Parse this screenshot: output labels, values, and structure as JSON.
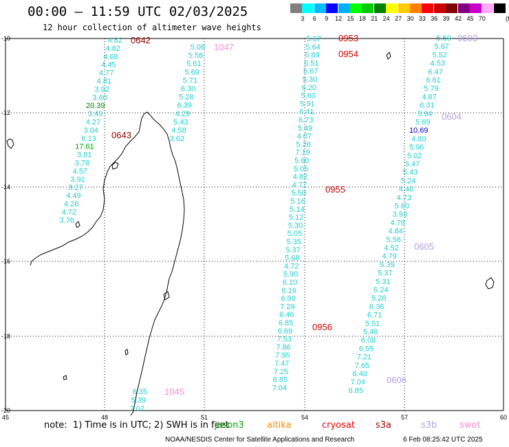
{
  "header": {
    "title": "00:00 – 11:59 UTC 02/03/2025",
    "subtitle": "12 hour collection of altimeter wave heights"
  },
  "scale": {
    "unit": "(ft)",
    "ticks": [
      "3",
      "6",
      "9",
      "12",
      "15",
      "18",
      "21",
      "24",
      "27",
      "30",
      "33",
      "36",
      "39",
      "42",
      "45",
      "70"
    ],
    "colors": [
      "#808080",
      "#00ffff",
      "#00bfff",
      "#0000ff",
      "#00b0ff",
      "#00ff00",
      "#00cc00",
      "#008000",
      "#ffff00",
      "#ffcc00",
      "#ff8000",
      "#ff0000",
      "#cc0000",
      "#800000",
      "#800080",
      "#cc00cc",
      "#ffaaff",
      "#000000"
    ]
  },
  "axes": {
    "lon_labels": [
      "45",
      "48",
      "51",
      "54",
      "57",
      "60"
    ],
    "lat_labels": [
      "-10",
      "-12",
      "-14",
      "-16",
      "-18",
      "-20"
    ]
  },
  "tracks": [
    {
      "values": [
        "4.82",
        "4.82",
        "4.68",
        "4.45",
        "4.77",
        "4.81",
        "3.92",
        "3.60",
        "20.39",
        "3.49",
        "4.27",
        "3.04",
        "6.13",
        "17.61",
        "3.81",
        "3.78",
        "4.57",
        "3.91",
        "3.27",
        "4.49",
        "4.26",
        "4.72",
        "3.76"
      ],
      "colors": {
        "20.39": "#008000",
        "17.61": "#00a000"
      }
    },
    {
      "values": [
        "5.08",
        "5.58",
        "5.61",
        "5.69",
        "5.71",
        "6.30",
        "5.28",
        "6.39",
        "4.29",
        "5.43",
        "4.58",
        "3.62"
      ]
    },
    {
      "values": [
        "5.67",
        "5.64",
        "5.89",
        "5.51",
        "5.67",
        "5.30",
        "6.20",
        "5.60",
        "5.91",
        "6.41",
        "6.73",
        "5.49",
        "4.07",
        "5.26",
        "7.19",
        "5.60",
        "5.05",
        "4.82",
        "4.77",
        "5.50",
        "5.16",
        "5.14",
        "5.12",
        "5.30",
        "5.05",
        "5.35",
        "5.37",
        "5.68",
        "4.72",
        "5.90",
        "6.10",
        "6.16",
        "6.90",
        "7.29",
        "6.46",
        "6.85",
        "6.69",
        "7.53",
        "7.86",
        "7.95",
        "7.47",
        "7.25",
        "6.85",
        "7.04"
      ]
    },
    {
      "values": [
        "5.59",
        "5.67",
        "5.52",
        "4.53",
        "6.47",
        "6.61",
        "5.79",
        "4.87",
        "6.31",
        "5.94",
        "5.69",
        "10.69",
        "4.80",
        "5.96",
        "5.02",
        "5.47",
        "5.43",
        "5.24",
        "4.46",
        "4.73",
        "5.60",
        "3.93",
        "4.78",
        "4.84",
        "5.58",
        "4.52",
        "4.79",
        "5.39",
        "5.37",
        "5.31",
        "5.24",
        "5.26",
        "6.36",
        "6.71",
        "5.51",
        "5.48",
        "6.08",
        "6.55",
        "7.21",
        "7.65",
        "6.40",
        "7.04",
        "6.85"
      ],
      "colors": {
        "10.69": "#0000cc"
      }
    },
    {
      "values": [
        "6.35",
        "5.39",
        "7.07"
      ]
    }
  ],
  "time_labels": [
    {
      "text": "0642",
      "color": "#990000"
    },
    {
      "text": "0643",
      "color": "#990000"
    },
    {
      "text": "1047",
      "color": "#ff88cc"
    },
    {
      "text": "1045",
      "color": "#ff88cc"
    },
    {
      "text": "0953",
      "color": "#cc0000"
    },
    {
      "text": "0954",
      "color": "#cc0000"
    },
    {
      "text": "0955",
      "color": "#cc0000"
    },
    {
      "text": "0956",
      "color": "#cc0000"
    },
    {
      "text": "0603",
      "color": "#b0a0e0"
    },
    {
      "text": "0604",
      "color": "#b0a0e0"
    },
    {
      "text": "0605",
      "color": "#b0a0e0"
    },
    {
      "text": "0606",
      "color": "#b0a0e0"
    }
  ],
  "footer": {
    "note": "note:  1) Time is in UTC; 2) SWH is in feet",
    "satellites": [
      {
        "name": "jason3",
        "color": "#00aa00"
      },
      {
        "name": "altika",
        "color": "#ff8c00"
      },
      {
        "name": "cryosat",
        "color": "#ee0000"
      },
      {
        "name": "s3a",
        "color": "#aa0000"
      },
      {
        "name": "s3b",
        "color": "#b0a0e0"
      },
      {
        "name": "swot",
        "color": "#ff88cc"
      }
    ],
    "credit": "NOAA/NESDIS Center for Satellite Applications and Research",
    "timestamp": "6 Feb 08:25:42 UTC 2025"
  }
}
